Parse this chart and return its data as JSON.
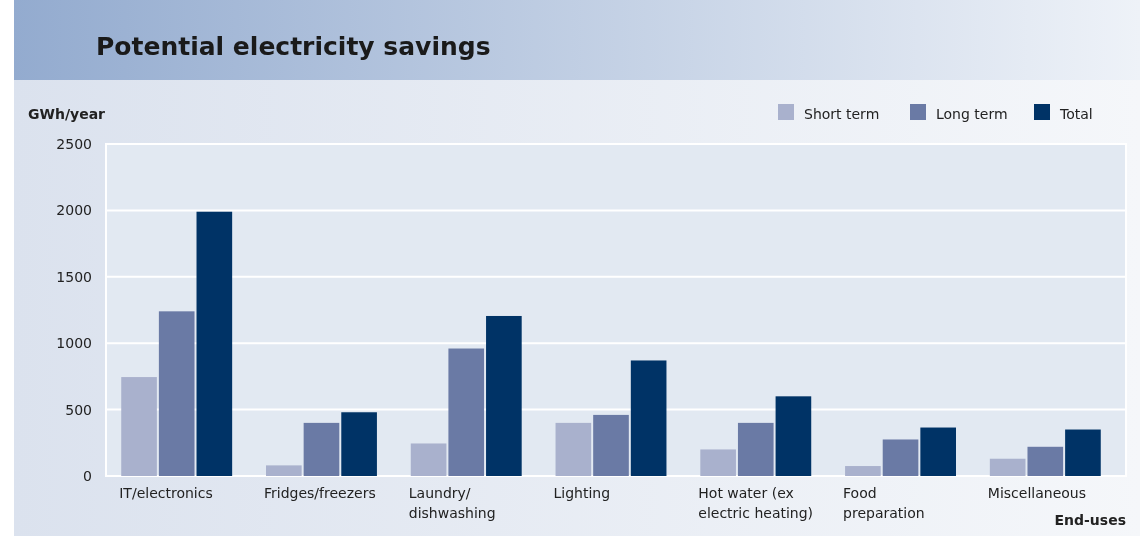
{
  "chart_data": {
    "type": "bar",
    "title": "Potential electricity savings",
    "xlabel": "End-uses",
    "ylabel": "GWh/year",
    "categories": [
      "IT/electronics",
      "Fridges/freezers",
      "Laundry/\ndishwashing",
      "Lighting",
      "Hot water (ex\nelectric heating)",
      "Food\npreparation",
      "Miscellaneous"
    ],
    "series": [
      {
        "name": "Short term",
        "color": "#a9b1cd",
        "values": [
          745,
          80,
          245,
          400,
          200,
          75,
          130
        ]
      },
      {
        "name": "Long term",
        "color": "#6a7aa5",
        "values": [
          1240,
          400,
          960,
          460,
          400,
          275,
          220
        ]
      },
      {
        "name": "Total",
        "color": "#003366",
        "values": [
          1990,
          480,
          1205,
          870,
          600,
          365,
          350
        ]
      }
    ],
    "ylim": [
      0,
      2500
    ],
    "yticks": [
      0,
      500,
      1000,
      1500,
      2000,
      2500
    ],
    "grid": "y",
    "legend": "top right"
  }
}
